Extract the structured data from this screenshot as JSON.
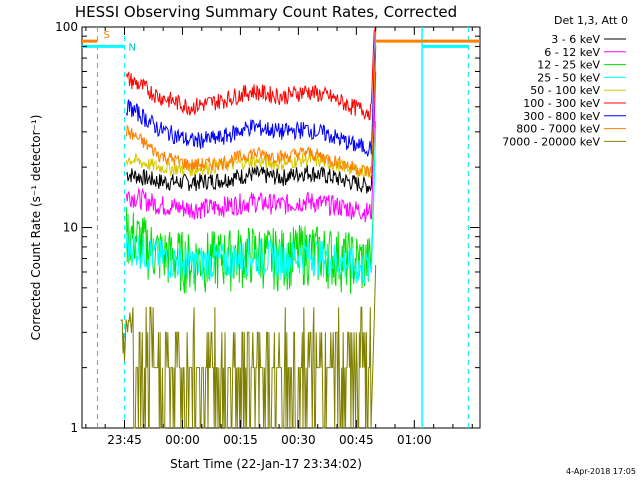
{
  "chart_data": {
    "type": "line",
    "title": "HESSI Observing Summary Count Rates, Corrected",
    "xlabel": "Start Time (22-Jan-17 23:34:02)",
    "ylabel": "Corrected Count Rate (s⁻¹ detector⁻¹)",
    "y_scale": "log",
    "ylim": [
      1,
      100
    ],
    "y_ticks": [
      "1",
      "10",
      "100"
    ],
    "x_ticks": [
      "23:45",
      "00:00",
      "00:15",
      "00:30",
      "00:45",
      "01:00"
    ],
    "x_tick_minutes": [
      11,
      26,
      41,
      56,
      71,
      86
    ],
    "xlim_minutes": [
      0,
      103
    ],
    "legend_title": "Det 1,3, Att 0",
    "legend_position": "right",
    "timestamp": "4-Apr-2018 17:05",
    "series": [
      {
        "name": "3 - 6 keV",
        "color": "#000000",
        "values": [
          18.5,
          17,
          16.8,
          17.3,
          18.5,
          17.8,
          19,
          18,
          16.8,
          16.2
        ]
      },
      {
        "name": "6 - 12 keV",
        "color": "#ff00ff",
        "values": [
          14.5,
          13,
          12.4,
          12.7,
          13.5,
          13,
          13.6,
          13,
          12.4,
          12
        ]
      },
      {
        "name": "12 - 25 keV",
        "color": "#00e000",
        "values": [
          9.5,
          7.5,
          7,
          7.2,
          7.6,
          7.3,
          7.8,
          7.5,
          7,
          6.8
        ]
      },
      {
        "name": "25 - 50 keV",
        "color": "#00ffff",
        "values": [
          8.3,
          7.2,
          6.6,
          6.9,
          7.3,
          7,
          7.4,
          7.1,
          6.5,
          6.3
        ]
      },
      {
        "name": "50 - 100 keV",
        "color": "#d8c800",
        "values": [
          22,
          20,
          19.5,
          20.3,
          21.5,
          20.8,
          22,
          21,
          19.6,
          19
        ]
      },
      {
        "name": "100 - 300 keV",
        "color": "#ff0000",
        "values": [
          55,
          45,
          40,
          43,
          48,
          45,
          48,
          45,
          40,
          38
        ]
      },
      {
        "name": "300 - 800 keV",
        "color": "#0000ff",
        "values": [
          40,
          31,
          27,
          28,
          32,
          30,
          31,
          29,
          26,
          25
        ]
      },
      {
        "name": "800 - 7000 keV",
        "color": "#ff8000",
        "values": [
          30,
          23,
          20.5,
          21,
          23.5,
          22.5,
          23.8,
          22,
          20,
          19
        ]
      },
      {
        "name": "7000 - 20000 keV",
        "color": "#808000",
        "values": [
          2.6,
          1.7,
          1.4,
          1.5,
          1.7,
          1.6,
          1.7,
          1.6,
          1.4,
          1.3
        ]
      }
    ],
    "x_minutes": [
      12,
      20,
      28,
      36,
      44,
      52,
      58,
      64,
      70,
      74
    ],
    "markers": {
      "orange_flags": [
        {
          "label": "S",
          "start_min": 0,
          "end_min": 4
        },
        {
          "label": "",
          "start_min": 76,
          "end_min": 103
        }
      ],
      "cyan_flags": [
        {
          "label": "N",
          "start_min": 0,
          "end_min": 11
        },
        {
          "label": "",
          "start_min": 88,
          "end_min": 100
        }
      ],
      "orange_dashed_min": [
        4,
        100
      ],
      "cyan_dashed_min": [
        11,
        88,
        100
      ],
      "flag_value": 80,
      "orange_flag_value": 85
    }
  }
}
